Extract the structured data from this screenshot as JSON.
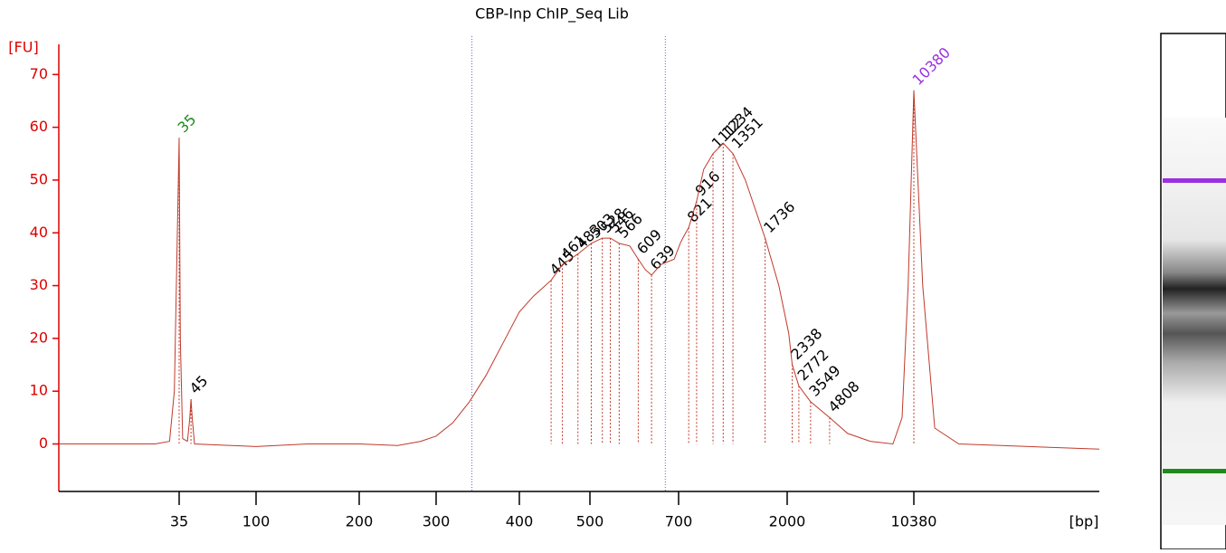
{
  "chart_data": {
    "type": "line",
    "title": "CBP-Inp ChIP_Seq Lib",
    "ylabel": "[FU]",
    "xlabel": "[bp]",
    "ylim": [
      -9,
      74
    ],
    "yticks": [
      0,
      10,
      20,
      30,
      40,
      50,
      60,
      70
    ],
    "xlim": [
      10,
      15000
    ],
    "xticks": [
      35,
      100,
      200,
      300,
      400,
      500,
      700,
      2000,
      10380
    ],
    "series": [
      {
        "name": "CBP-Inp ChIP_Seq Lib",
        "color": "#c0392b",
        "x": [
          10,
          30,
          33,
          34,
          35,
          36,
          38,
          42,
          44,
          45,
          46,
          48,
          100,
          150,
          200,
          250,
          280,
          300,
          320,
          340,
          360,
          380,
          400,
          420,
          445,
          461,
          483,
          503,
          528,
          546,
          566,
          590,
          609,
          625,
          639,
          660,
          690,
          720,
          750,
          821,
          916,
          1000,
          1112,
          1234,
          1351,
          1500,
          1736,
          1900,
          2100,
          2338,
          2772,
          3549,
          4808,
          6000,
          7500,
          9000,
          9600,
          10000,
          10380,
          10600,
          10900,
          11500,
          15000
        ],
        "values": [
          0,
          0,
          0.5,
          10,
          58,
          20,
          1,
          0.5,
          5,
          8.5,
          5,
          0,
          -0.5,
          0,
          0,
          -0.3,
          0.5,
          1.5,
          4,
          8,
          13,
          19,
          25,
          28,
          31,
          34,
          36,
          38,
          39,
          39,
          38,
          37.5,
          35,
          33,
          32,
          34,
          35,
          38,
          39,
          41,
          46,
          52,
          55,
          57,
          55,
          50,
          39,
          30,
          21,
          15,
          11,
          8,
          5,
          2,
          0.5,
          0,
          5,
          30,
          67,
          30,
          3,
          0,
          -1
        ]
      }
    ],
    "peaks": [
      {
        "x": 35,
        "y": 58,
        "color": "#1e8a1e"
      },
      {
        "x": 45,
        "y": 8.5
      },
      {
        "x": 445,
        "y": 31
      },
      {
        "x": 461,
        "y": 34
      },
      {
        "x": 483,
        "y": 36
      },
      {
        "x": 503,
        "y": 38
      },
      {
        "x": 528,
        "y": 39
      },
      {
        "x": 546,
        "y": 39
      },
      {
        "x": 566,
        "y": 38
      },
      {
        "x": 609,
        "y": 35
      },
      {
        "x": 639,
        "y": 32
      },
      {
        "x": 821,
        "y": 41
      },
      {
        "x": 916,
        "y": 46
      },
      {
        "x": 1112,
        "y": 55
      },
      {
        "x": 1234,
        "y": 57
      },
      {
        "x": 1351,
        "y": 55
      },
      {
        "x": 1736,
        "y": 39
      },
      {
        "x": 2338,
        "y": 15
      },
      {
        "x": 2772,
        "y": 11
      },
      {
        "x": 3549,
        "y": 8
      },
      {
        "x": 4808,
        "y": 5
      },
      {
        "x": 10380,
        "y": 67,
        "color": "#9b30e0"
      }
    ],
    "region": [
      343,
      670
    ]
  }
}
